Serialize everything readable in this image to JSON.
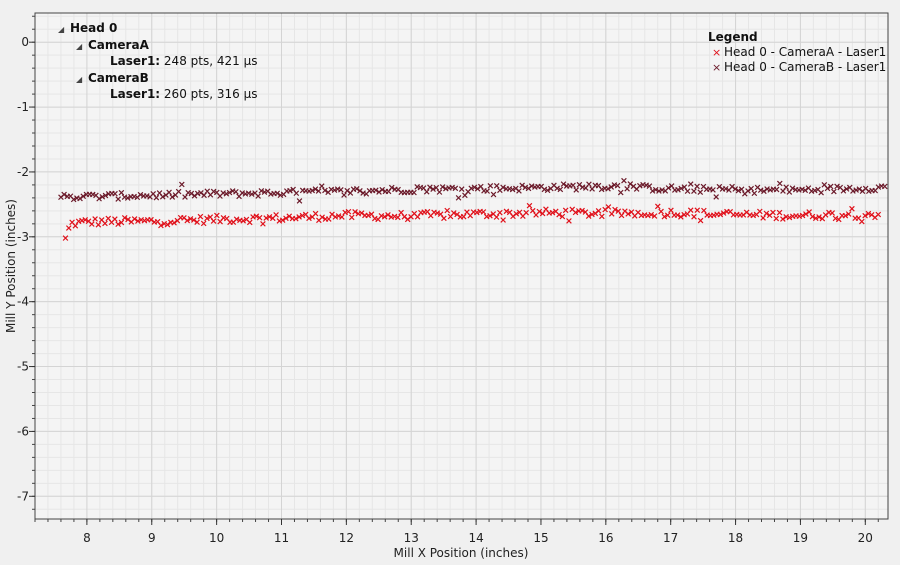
{
  "chart_data": {
    "type": "scatter",
    "xlabel": "Mill X Position (inches)",
    "ylabel": "Mill Y Position (inches)",
    "xlim": [
      7.2,
      20.35
    ],
    "ylim": [
      -7.35,
      0.45
    ],
    "xticks": [
      8,
      9,
      10,
      11,
      12,
      13,
      14,
      15,
      16,
      17,
      18,
      19,
      20
    ],
    "yticks": [
      0,
      -1,
      -2,
      -3,
      -4,
      -5,
      -6,
      -7
    ],
    "grid": true,
    "legend": {
      "title": "Legend",
      "placement": "top-right",
      "entries": [
        "Head 0 - CameraA - Laser1",
        "Head 0 - CameraB - Laser1"
      ]
    },
    "series": [
      {
        "name": "Head 0 - CameraA - Laser1",
        "color": "#e0101a",
        "marker": "x",
        "x_start": 7.67,
        "x_end": 20.2,
        "count": 248,
        "y_anchor_x": [
          7.67,
          7.75,
          8.0,
          9.0,
          10.0,
          11.0,
          12.0,
          13.0,
          14.0,
          15.0,
          16.0,
          17.0,
          18.0,
          19.0,
          20.2
        ],
        "y_anchor_y": [
          -3.02,
          -2.8,
          -2.77,
          -2.76,
          -2.73,
          -2.71,
          -2.67,
          -2.68,
          -2.65,
          -2.63,
          -2.64,
          -2.63,
          -2.66,
          -2.67,
          -2.65
        ],
        "y_spread": 0.06
      },
      {
        "name": "Head 0 - CameraB - Laser1",
        "color": "#6b1a2a",
        "marker": "x",
        "x_start": 7.6,
        "x_end": 20.3,
        "count": 260,
        "y_anchor_x": [
          7.6,
          8.0,
          9.0,
          10.0,
          11.0,
          12.0,
          13.0,
          14.0,
          15.0,
          16.0,
          17.0,
          18.0,
          19.0,
          20.3
        ],
        "y_anchor_y": [
          -2.39,
          -2.38,
          -2.36,
          -2.34,
          -2.32,
          -2.3,
          -2.27,
          -2.26,
          -2.24,
          -2.22,
          -2.26,
          -2.28,
          -2.28,
          -2.24
        ],
        "y_spread": 0.05
      }
    ]
  },
  "tree": {
    "head": "Head 0",
    "camera_a": "CameraA",
    "camera_a_laser_label": "Laser1:",
    "camera_a_laser_stats": "248 pts,  421 µs",
    "camera_b": "CameraB",
    "camera_b_laser_label": "Laser1:",
    "camera_b_laser_stats": "260 pts,  316 µs"
  },
  "colors": {
    "background": "#f0f0f0",
    "plot_background": "#f4f4f4",
    "major_grid": "#d4d4d4",
    "minor_grid": "#e6e6e6"
  }
}
